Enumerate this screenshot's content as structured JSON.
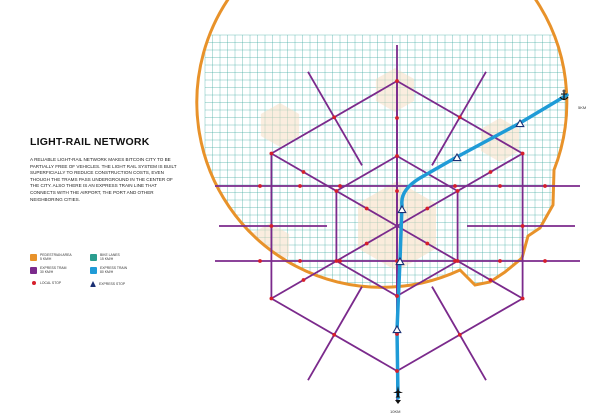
{
  "title": "LIGHT-RAIL NETWORK",
  "description": "A RELIABLE LIGHT-RAIL NETWORK MAKES BITCOIN CITY TO BE PARTIALLY FREE OF VEHICLES. THE LIGHT RAIL SYSTEM IS BUILT SUPERFICIALLY TO REDUCE CONSTRUCTION COSTS, EVEN THOUGH THE TRAMS PASS UNDERGROUND IN THE CENTER OF THE CITY. ALSO THERE IS AN EXPRESS TRAIN LINE THAT CONNECTS WITH THE AIRPORT, THE PORT AND OTHER NEIGHBORING CITIES.",
  "legend": [
    {
      "id": "pedestrian",
      "label": "PEDESTRIAN AREA\n5 KM/H",
      "color": "#e8922a",
      "icon": "pedestrian-icon"
    },
    {
      "id": "bike",
      "label": "BIKE LANES\n15 KM/H",
      "color": "#2a9d8f",
      "icon": "bike-icon"
    },
    {
      "id": "express-tram",
      "label": "EXPRESS TRAM\n30 KM/H",
      "color": "#7b2a8c",
      "icon": "tram-icon"
    },
    {
      "id": "express-train",
      "label": "EXPRESS TRAIN\n80 KM/H",
      "color": "#1f9bd7",
      "icon": "train-icon"
    },
    {
      "id": "local-stop",
      "label": "LOCAL STOP",
      "color": "#d61f2b",
      "icon": "dot-icon"
    },
    {
      "id": "express-stop",
      "label": "EXPRESS STOP",
      "color": "#1a2f73",
      "icon": "triangle-icon"
    }
  ],
  "destinations": {
    "port_distance": "5KM",
    "airport_distance": "10KM"
  },
  "colors": {
    "city_boundary": "#e8922a",
    "grid": "#3fa9a0",
    "tram": "#7b2a8c",
    "express_train": "#1f9bd7",
    "local_stop": "#d61f2b",
    "express_stop": "#1a2f73",
    "pedestrian_zone": "#f6dcc0"
  }
}
